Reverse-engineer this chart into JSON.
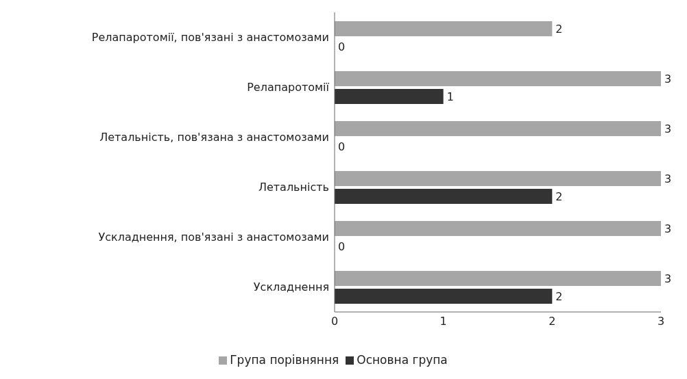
{
  "chart_data": {
    "type": "bar",
    "orientation": "horizontal",
    "categories": [
      "Релапаротомії, пов'язані з анастомозами",
      "Релапаротомії",
      "Летальність, пов'язана з анастомозами",
      "Летальність",
      "Ускладнення, пов'язані з анастомозами",
      "Ускладнення"
    ],
    "series": [
      {
        "name": "Група порівняння",
        "color": "#a6a6a6",
        "values": [
          2,
          3,
          3,
          3,
          3,
          3
        ]
      },
      {
        "name": "Основна група",
        "color": "#333333",
        "values": [
          0,
          1,
          0,
          2,
          0,
          2
        ]
      }
    ],
    "xlim": [
      0,
      3
    ],
    "xticks": [
      0,
      1,
      2,
      3
    ],
    "data_labels": true,
    "grid": false,
    "legend": "bottom"
  }
}
